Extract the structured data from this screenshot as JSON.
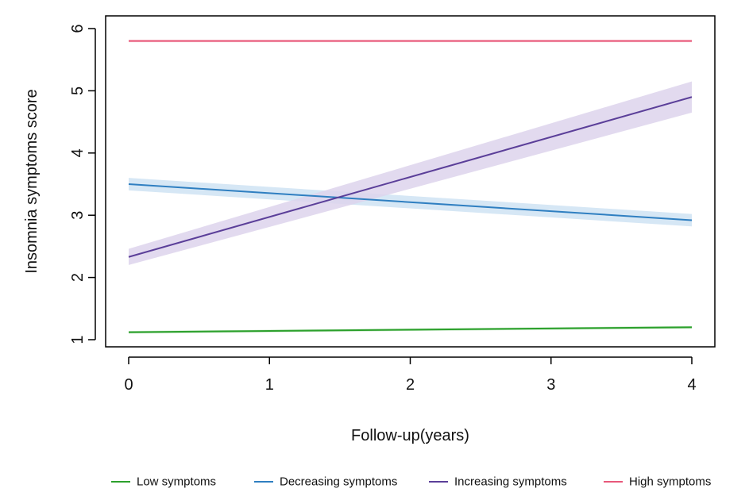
{
  "chart_data": {
    "type": "line",
    "title": "",
    "xlabel": "Follow-up(years)",
    "ylabel": "Insomnia symptoms score",
    "xlim": [
      0,
      4
    ],
    "ylim": [
      1,
      6
    ],
    "x_ticks": [
      0,
      1,
      2,
      3,
      4
    ],
    "y_ticks": [
      1,
      2,
      3,
      4,
      5,
      6
    ],
    "grid": false,
    "legend_position": "bottom",
    "series": [
      {
        "name": "Low symptoms",
        "color": "#2ca02c",
        "band_color": "#b9e3b9",
        "x": [
          0,
          4
        ],
        "y": [
          1.12,
          1.2
        ],
        "ci_lower": [
          1.1,
          1.18
        ],
        "ci_upper": [
          1.14,
          1.22
        ]
      },
      {
        "name": "Decreasing symptoms",
        "color": "#2f7fc1",
        "band_color": "#cfe3f3",
        "x": [
          0,
          4
        ],
        "y": [
          3.5,
          2.92
        ],
        "ci_lower": [
          3.4,
          2.82
        ],
        "ci_upper": [
          3.6,
          3.02
        ]
      },
      {
        "name": "Increasing symptoms",
        "color": "#5b3f99",
        "band_color": "#ddd3ec",
        "x": [
          0,
          4
        ],
        "y": [
          2.33,
          4.9
        ],
        "ci_lower": [
          2.2,
          4.65
        ],
        "ci_upper": [
          2.46,
          5.15
        ]
      },
      {
        "name": "High symptoms",
        "color": "#e8587a",
        "band_color": "#f8d2dc",
        "x": [
          0,
          4
        ],
        "y": [
          5.8,
          5.8
        ],
        "ci_lower": [
          5.78,
          5.78
        ],
        "ci_upper": [
          5.82,
          5.82
        ]
      }
    ]
  }
}
